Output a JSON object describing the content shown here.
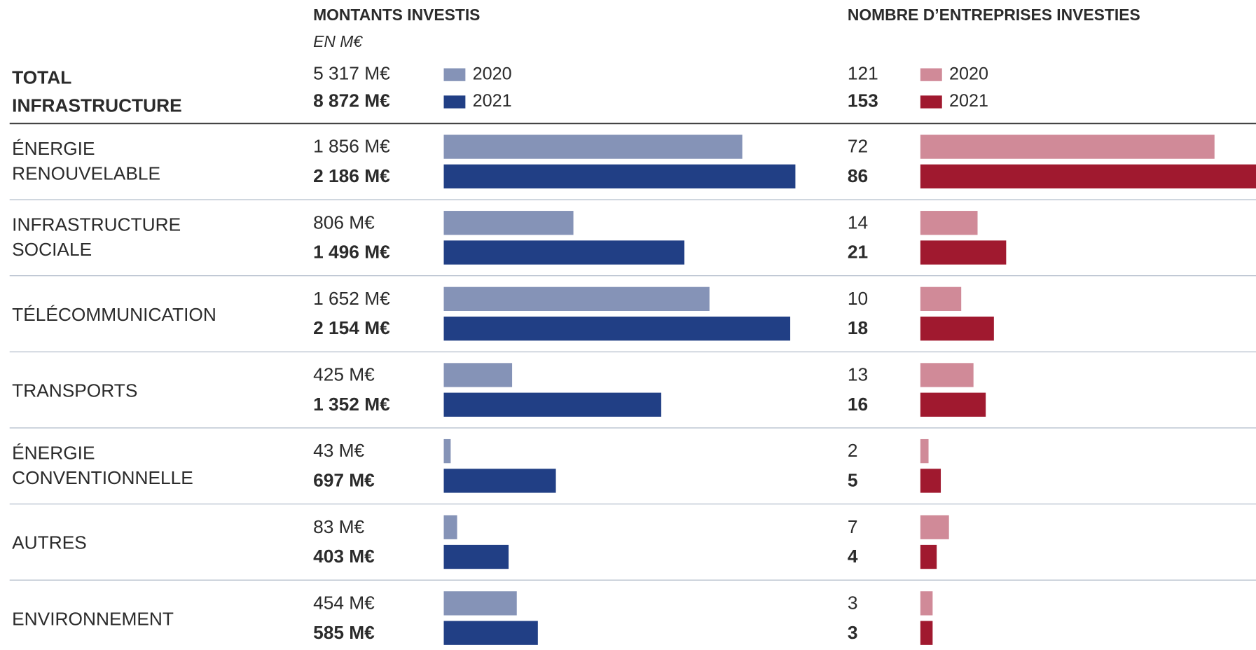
{
  "row_header": [
    "TOTAL",
    "INFRASTRUCTURE"
  ],
  "categories": [
    [
      "ÉNERGIE",
      "RENOUVELABLE"
    ],
    [
      "INFRASTRUCTURE",
      "SOCIALE"
    ],
    [
      "TÉLÉCOMMUNICATION"
    ],
    [
      "TRANSPORTS"
    ],
    [
      "ÉNERGIE",
      "CONVENTIONNELLE"
    ],
    [
      "AUTRES"
    ],
    [
      "ENVIRONNEMENT"
    ]
  ],
  "chart_data": [
    {
      "type": "bar",
      "orientation": "horizontal",
      "title": "MONTANTS INVESTIS",
      "subtitle": "EN M€",
      "series": [
        {
          "name": "2020",
          "color": "#8593b7",
          "total": 5317,
          "total_label": "5 317 M€",
          "values": [
            1856,
            806,
            1652,
            425,
            43,
            83,
            454
          ],
          "value_labels": [
            "1 856 M€",
            "806 M€",
            "1 652 M€",
            "425 M€",
            "43 M€",
            "83 M€",
            "454 M€"
          ]
        },
        {
          "name": "2021",
          "color": "#213f85",
          "total": 8872,
          "total_label": "8 872 M€",
          "values": [
            2186,
            1496,
            2154,
            1352,
            697,
            403,
            585
          ],
          "value_labels": [
            "2 186 M€",
            "1 496 M€",
            "2 154 M€",
            "1 352 M€",
            "697 M€",
            "403 M€",
            "585 M€"
          ]
        }
      ]
    },
    {
      "type": "bar",
      "orientation": "horizontal",
      "title": "NOMBRE D’ENTREPRISES INVESTIES",
      "series": [
        {
          "name": "2020",
          "color": "#d08a98",
          "total": 121,
          "values": [
            72,
            14,
            10,
            13,
            2,
            7,
            3
          ]
        },
        {
          "name": "2021",
          "color": "#a0192f",
          "total": 153,
          "values": [
            86,
            21,
            18,
            16,
            5,
            4,
            3
          ]
        }
      ]
    }
  ]
}
